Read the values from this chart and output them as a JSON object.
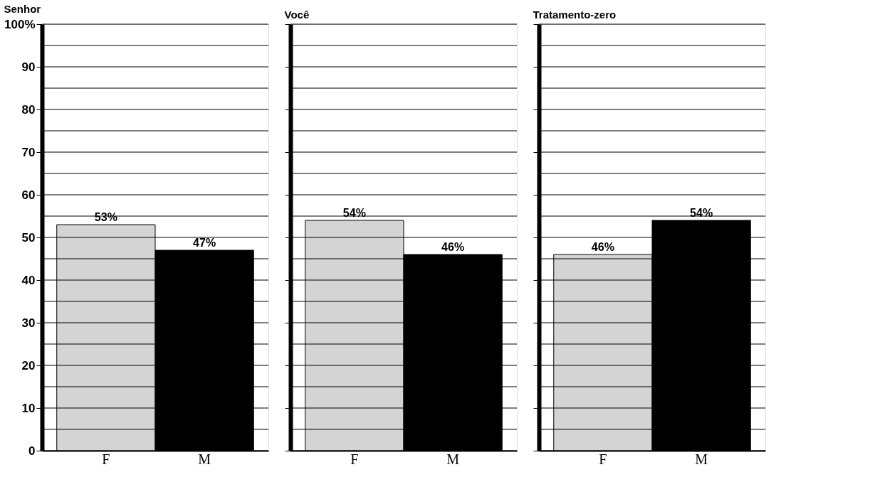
{
  "chart_data": [
    {
      "type": "bar",
      "title": "Senhor",
      "categories": [
        "F",
        "M"
      ],
      "values": [
        53,
        47
      ],
      "colors": [
        "#d4d4d4",
        "#000000"
      ],
      "value_labels": [
        "53%",
        "47%"
      ],
      "ylim": [
        0,
        100
      ],
      "yticks": [
        0,
        {
          "value": 5,
          "label": null
        },
        10,
        {
          "value": 15,
          "label": null
        },
        20,
        {
          "value": 25,
          "label": null
        },
        30,
        {
          "value": 35,
          "label": null
        },
        40,
        {
          "value": 45,
          "label": null
        },
        50,
        {
          "value": 55,
          "label": null
        },
        60,
        {
          "value": 65,
          "label": null
        },
        70,
        {
          "value": 75,
          "label": null
        },
        80,
        {
          "value": 85,
          "label": null
        },
        90,
        {
          "value": 95,
          "label": null
        },
        {
          "value": 100,
          "label": "100%"
        }
      ],
      "grid": "y",
      "legend": false
    },
    {
      "type": "bar",
      "title": "Você",
      "categories": [
        "F",
        "M"
      ],
      "values": [
        54,
        46
      ],
      "colors": [
        "#d4d4d4",
        "#000000"
      ],
      "value_labels": [
        "54%",
        "46%"
      ],
      "ylim": [
        0,
        100
      ],
      "yticks": [
        0,
        5,
        10,
        15,
        20,
        25,
        30,
        35,
        40,
        45,
        50,
        55,
        60,
        65,
        70,
        75,
        80,
        85,
        90,
        95,
        100
      ],
      "grid": "y",
      "legend": false,
      "tick_labels": "x"
    },
    {
      "type": "bar",
      "title": "Tratamento-zero",
      "categories": [
        "F",
        "M"
      ],
      "values": [
        46,
        54
      ],
      "colors": [
        "#d4d4d4",
        "#000000"
      ],
      "value_labels": [
        "46%",
        "54%"
      ],
      "ylim": [
        0,
        100
      ],
      "yticks": [
        0,
        5,
        10,
        15,
        20,
        25,
        30,
        35,
        40,
        45,
        50,
        55,
        60,
        65,
        70,
        75,
        80,
        85,
        90,
        95,
        100
      ],
      "grid": "y",
      "legend": false,
      "tick_labels": "x"
    }
  ]
}
